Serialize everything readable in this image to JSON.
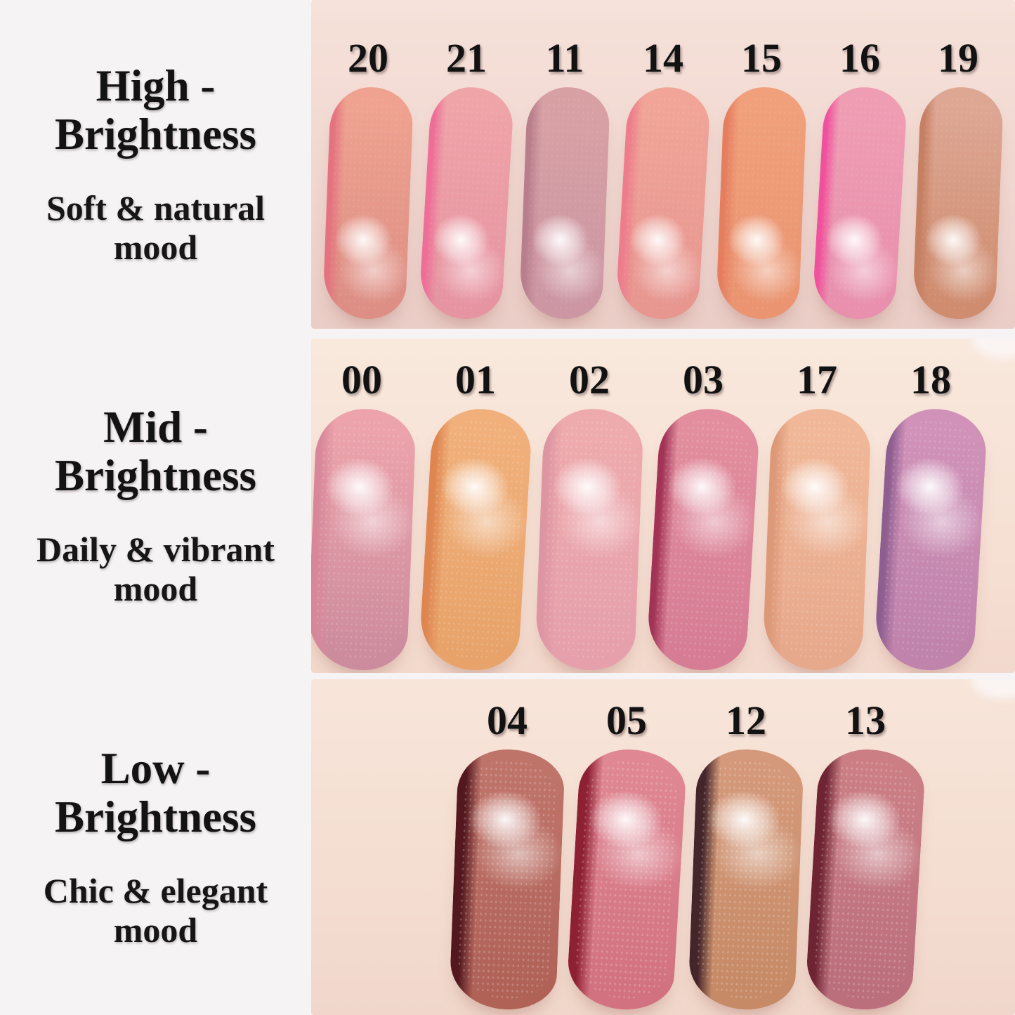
{
  "sections": [
    {
      "id": "high-brightness",
      "title": "High - Brightness",
      "subtitle": "Soft & natural mood",
      "shades": [
        {
          "number": "20",
          "edge_color": "#e4737f",
          "top_color": "#efa28f",
          "bottom_color": "#dd8f85"
        },
        {
          "number": "21",
          "edge_color": "#ee6e97",
          "top_color": "#efa4a8",
          "bottom_color": "#e694a2"
        },
        {
          "number": "11",
          "edge_color": "#b97e8c",
          "top_color": "#d7a1a4",
          "bottom_color": "#cc96a3"
        },
        {
          "number": "14",
          "edge_color": "#ee7d8c",
          "top_color": "#f0a598",
          "bottom_color": "#e79690"
        },
        {
          "number": "15",
          "edge_color": "#e57e5f",
          "top_color": "#f0a07b",
          "bottom_color": "#ea9471"
        },
        {
          "number": "16",
          "edge_color": "#f0519c",
          "top_color": "#ef9db3",
          "bottom_color": "#e890ae"
        },
        {
          "number": "19",
          "edge_color": "#c57f62",
          "top_color": "#dda794",
          "bottom_color": "#cf8c6f"
        }
      ]
    },
    {
      "id": "mid-brightness",
      "title": "Mid - Brightness",
      "subtitle": "Daily & vibrant mood",
      "shades": [
        {
          "number": "00",
          "edge_color": "#d8879a",
          "top_color": "#eca3ab",
          "bottom_color": "#cd8c9d"
        },
        {
          "number": "01",
          "edge_color": "#de8550",
          "top_color": "#f1b07b",
          "bottom_color": "#e7a369"
        },
        {
          "number": "02",
          "edge_color": "#dd95a2",
          "top_color": "#eeabad",
          "bottom_color": "#e5a0ac"
        },
        {
          "number": "03",
          "edge_color": "#a23356",
          "top_color": "#e28e9e",
          "bottom_color": "#d67d95"
        },
        {
          "number": "17",
          "edge_color": "#dd9878",
          "top_color": "#f0b898",
          "bottom_color": "#e7a98c"
        },
        {
          "number": "18",
          "edge_color": "#8e5e90",
          "top_color": "#d092b8",
          "bottom_color": "#bf83ac"
        }
      ]
    },
    {
      "id": "low-brightness",
      "title": "Low - Brightness",
      "subtitle": "Chic & elegant mood",
      "shades": [
        {
          "number": "04",
          "edge_color": "#53181e",
          "top_color": "#bf746a",
          "bottom_color": "#b06257"
        },
        {
          "number": "05",
          "edge_color": "#8e2034",
          "top_color": "#df8793",
          "bottom_color": "#d27280"
        },
        {
          "number": "12",
          "edge_color": "#43252a",
          "top_color": "#d4997a",
          "bottom_color": "#c68a66"
        },
        {
          "number": "13",
          "edge_color": "#6e2433",
          "top_color": "#cb7f85",
          "bottom_color": "#bb6f7d"
        }
      ]
    }
  ]
}
